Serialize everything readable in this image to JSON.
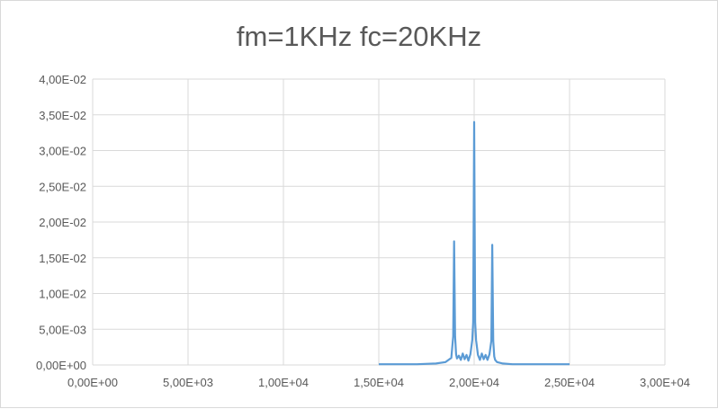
{
  "chart_data": {
    "type": "line",
    "title": "fm=1KHz fc=20KHz",
    "xlabel": "",
    "ylabel": "",
    "xlim": [
      0,
      30000
    ],
    "ylim": [
      0,
      0.04
    ],
    "x_ticks": [
      0,
      5000,
      10000,
      15000,
      20000,
      25000,
      30000
    ],
    "x_tick_labels": [
      "0,00E+00",
      "5,00E+03",
      "1,00E+04",
      "1,50E+04",
      "2,00E+04",
      "2,50E+04",
      "3,00E+04"
    ],
    "y_ticks": [
      0,
      0.005,
      0.01,
      0.015,
      0.02,
      0.025,
      0.03,
      0.035,
      0.04
    ],
    "y_tick_labels": [
      "0,00E+00",
      "5,00E-03",
      "1,00E-02",
      "1,50E-02",
      "2,00E-02",
      "2,50E-02",
      "3,00E-02",
      "3,50E-02",
      "4,00E-02"
    ],
    "grid": true,
    "legend": "none",
    "series": [
      {
        "color": "#5b9bd5",
        "x": [
          15000,
          17000,
          18000,
          18500,
          18800,
          18900,
          18950,
          19000,
          19050,
          19100,
          19200,
          19300,
          19400,
          19500,
          19600,
          19700,
          19800,
          19900,
          19950,
          20000,
          20050,
          20100,
          20200,
          20300,
          20400,
          20500,
          20600,
          20700,
          20800,
          20900,
          20950,
          21000,
          21050,
          21100,
          21200,
          21500,
          22000,
          23000,
          25000
        ],
        "y": [
          0.0001,
          0.0001,
          0.0002,
          0.0004,
          0.001,
          0.004,
          0.0173,
          0.004,
          0.0015,
          0.0009,
          0.0013,
          0.0007,
          0.0016,
          0.0008,
          0.0014,
          0.0006,
          0.0015,
          0.0035,
          0.006,
          0.034,
          0.006,
          0.0035,
          0.0014,
          0.0007,
          0.0016,
          0.0008,
          0.0014,
          0.0007,
          0.0015,
          0.0034,
          0.0168,
          0.0034,
          0.0012,
          0.0007,
          0.0004,
          0.0002,
          0.0001,
          0.0001,
          0.0001
        ]
      }
    ]
  }
}
